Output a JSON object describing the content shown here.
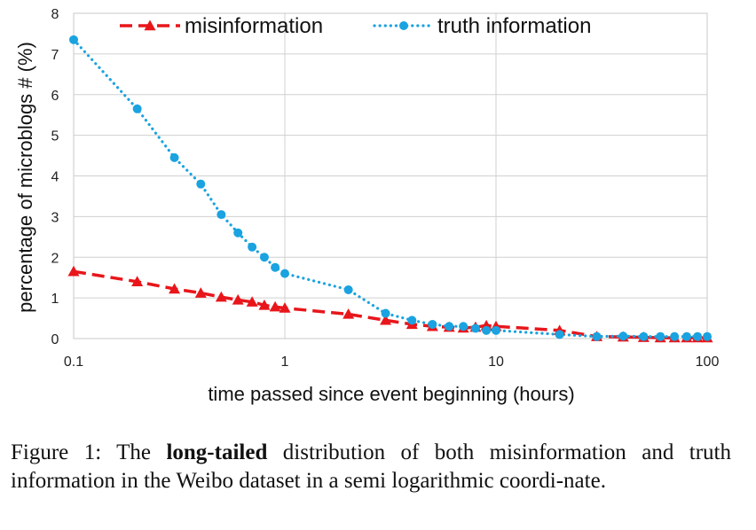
{
  "chart_data": {
    "type": "line",
    "xscale": "log",
    "xlabel": "time passed since event beginning (hours)",
    "ylabel": "percentage of microblogs # (%)",
    "xlim": [
      0.1,
      100
    ],
    "ylim": [
      0,
      8
    ],
    "xticks": [
      "0.1",
      "1",
      "10",
      "100"
    ],
    "yticks": [
      "0",
      "1",
      "2",
      "3",
      "4",
      "5",
      "6",
      "7",
      "8"
    ],
    "grid": true,
    "legend": "top",
    "series": [
      {
        "name": "misinformation",
        "color": "#e8161b",
        "marker": "triangle",
        "line": "dashed",
        "x": [
          0.1,
          0.2,
          0.3,
          0.4,
          0.5,
          0.6,
          0.7,
          0.8,
          0.9,
          1,
          2,
          3,
          4,
          5,
          6,
          7,
          8,
          9,
          10,
          20,
          30,
          40,
          50,
          60,
          70,
          80,
          90,
          100
        ],
        "y": [
          1.65,
          1.4,
          1.22,
          1.12,
          1.02,
          0.95,
          0.9,
          0.82,
          0.78,
          0.75,
          0.6,
          0.45,
          0.35,
          0.3,
          0.28,
          0.26,
          0.28,
          0.32,
          0.3,
          0.2,
          0.05,
          0.04,
          0.03,
          0.02,
          0.02,
          0.02,
          0.02,
          0.02
        ]
      },
      {
        "name": "truth information",
        "color": "#1aa3e0",
        "marker": "circle",
        "line": "dotted",
        "x": [
          0.1,
          0.2,
          0.3,
          0.4,
          0.5,
          0.6,
          0.7,
          0.8,
          0.9,
          1,
          2,
          3,
          4,
          5,
          6,
          7,
          8,
          9,
          10,
          20,
          30,
          40,
          50,
          60,
          70,
          80,
          90,
          100
        ],
        "y": [
          7.35,
          5.65,
          4.45,
          3.8,
          3.05,
          2.6,
          2.25,
          2.0,
          1.75,
          1.6,
          1.2,
          0.62,
          0.45,
          0.35,
          0.3,
          0.3,
          0.25,
          0.2,
          0.2,
          0.1,
          0.05,
          0.06,
          0.05,
          0.05,
          0.05,
          0.05,
          0.05,
          0.05
        ]
      }
    ]
  },
  "caption": {
    "prefix": "Figure 1: The ",
    "bold": "long-tailed",
    "suffix": " distribution of both misinformation and truth information in the Weibo dataset in a semi logarithmic coordi-nate."
  }
}
